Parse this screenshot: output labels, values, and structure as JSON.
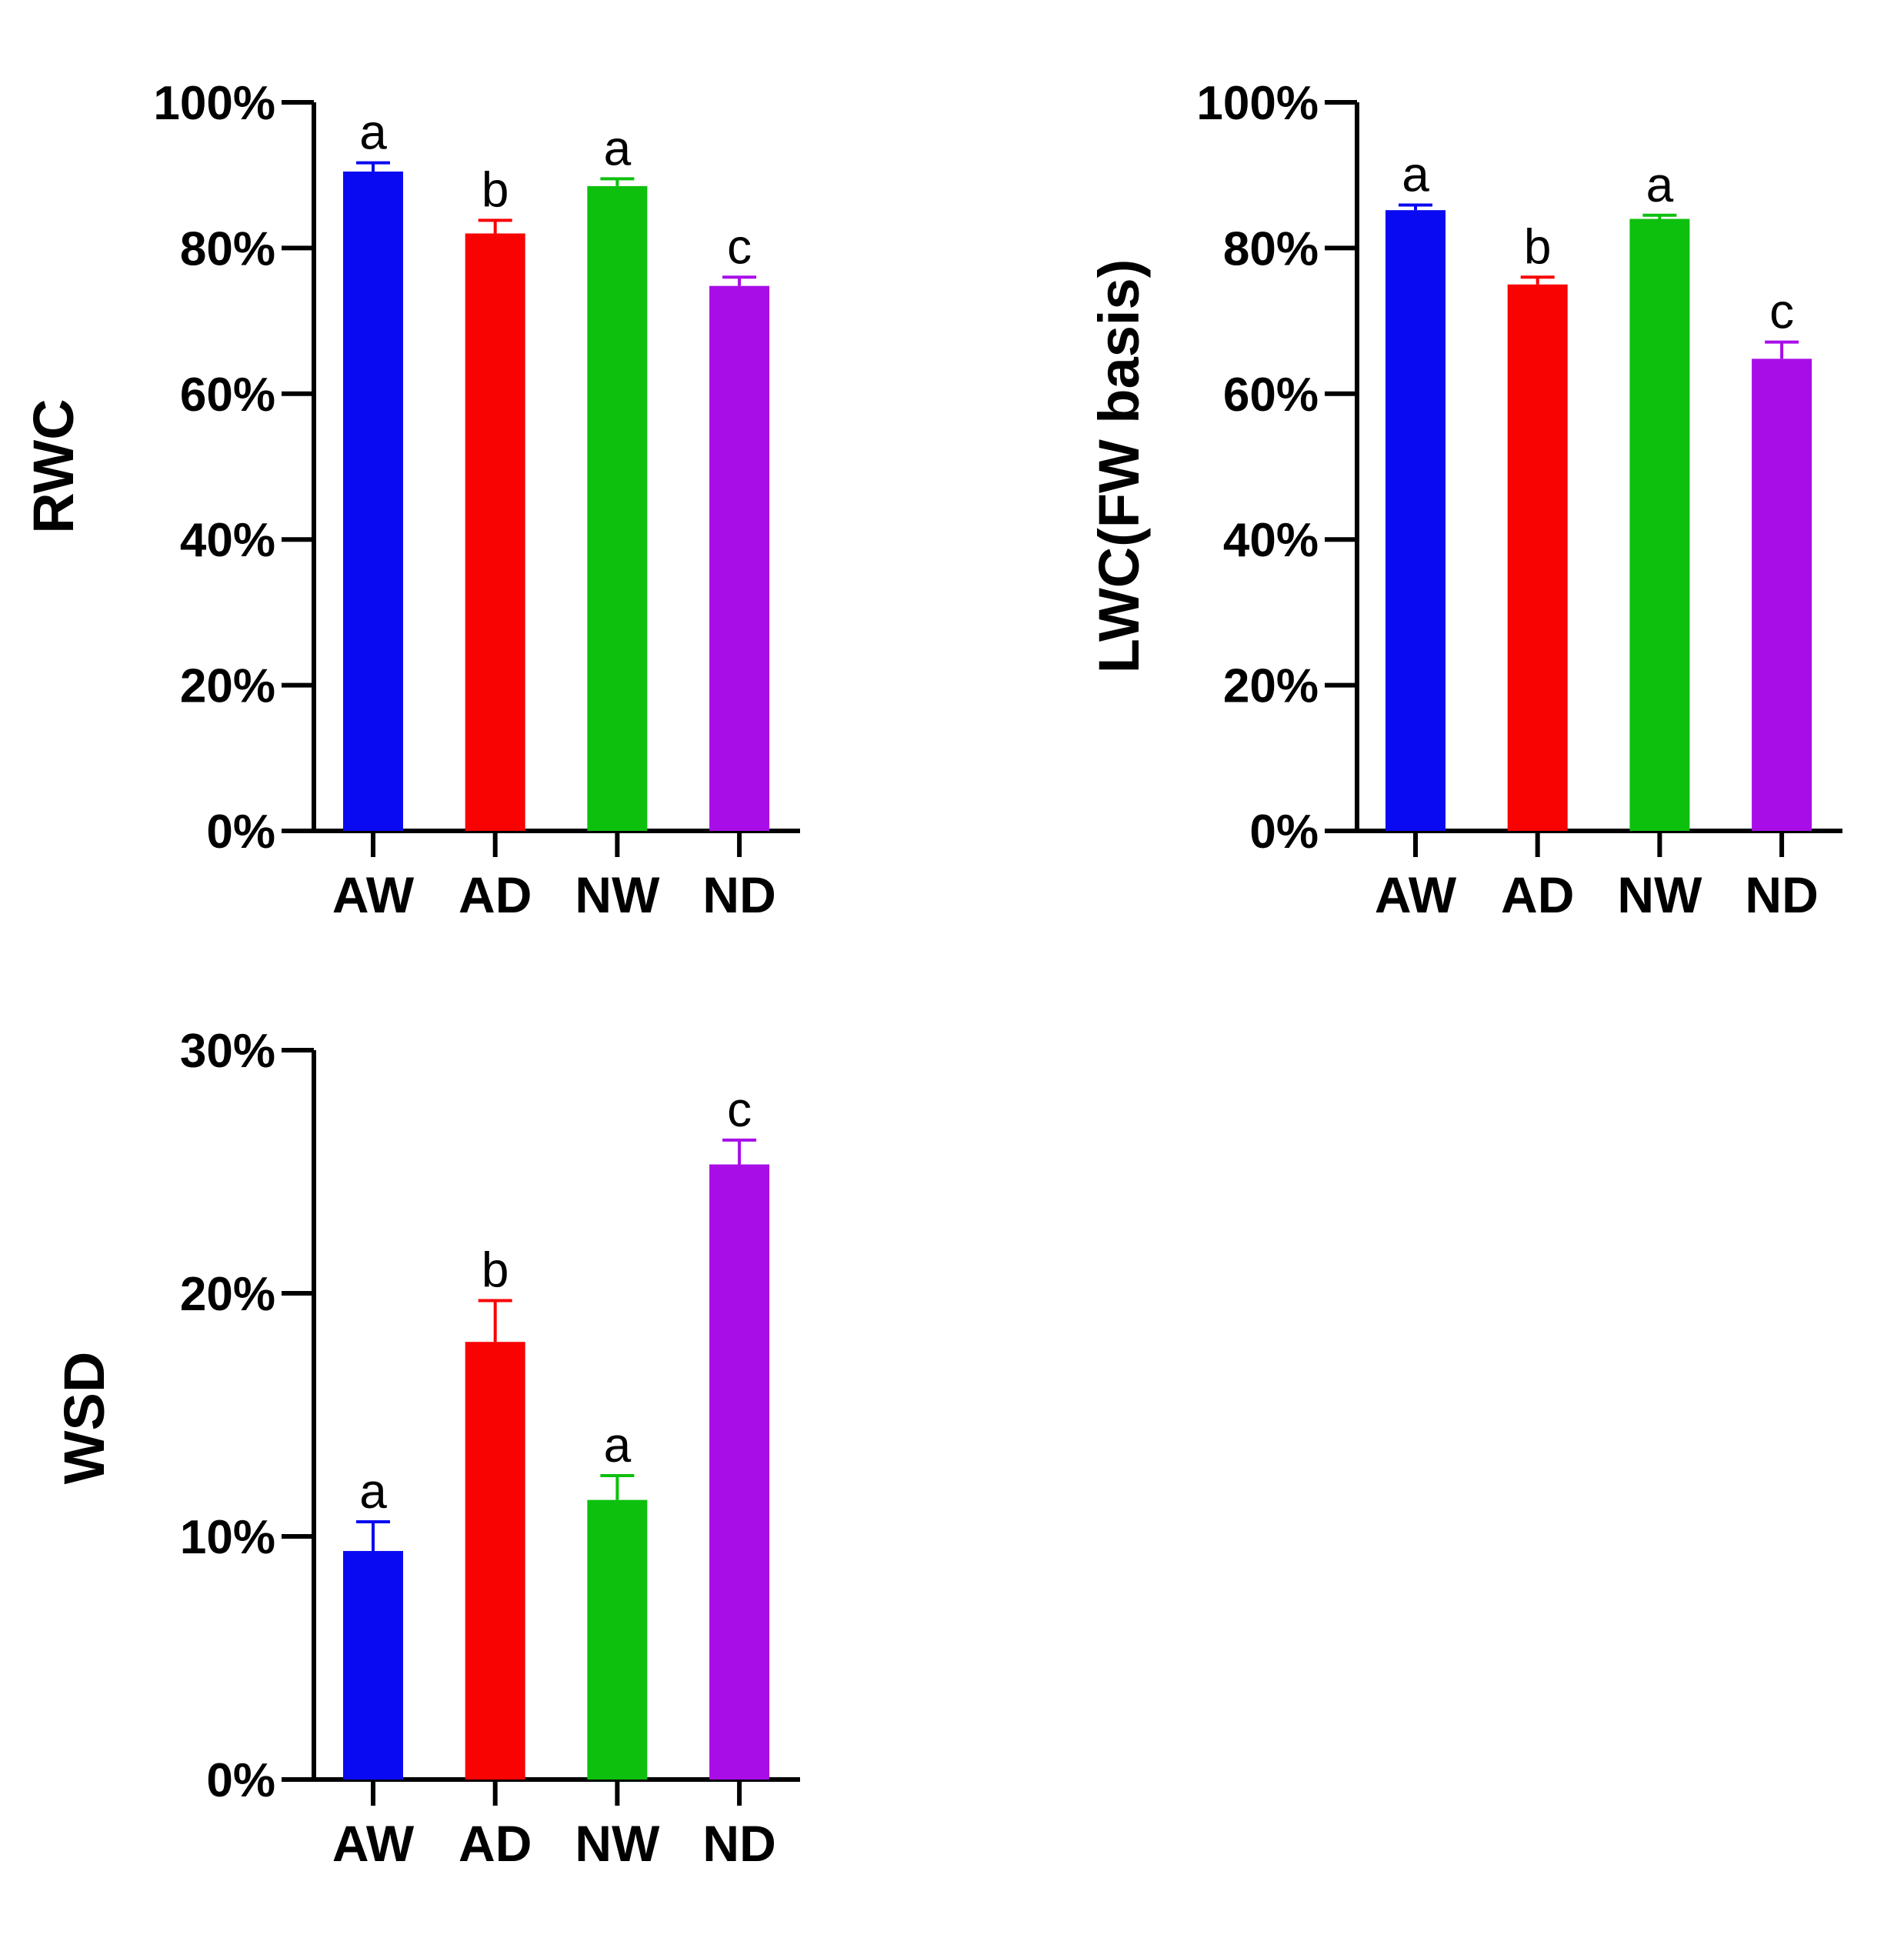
{
  "chart_data": [
    {
      "type": "bar",
      "title": "",
      "xlabel": "",
      "ylabel": "RWC",
      "categories": [
        "AW",
        "AD",
        "NW",
        "ND"
      ],
      "values": [
        90.5,
        82,
        88.5,
        74.8
      ],
      "errors": [
        1.2,
        1.8,
        1.0,
        1.2
      ],
      "significance": [
        "a",
        "b",
        "a",
        "c"
      ],
      "colors": [
        "#0A0AF2",
        "#F80202",
        "#0DC00D",
        "#A80DE8"
      ],
      "ylim": [
        0,
        100
      ],
      "yticks": [
        "0%",
        "20%",
        "40%",
        "60%",
        "80%",
        "100%"
      ],
      "grid": false
    },
    {
      "type": "bar",
      "title": "",
      "xlabel": "",
      "ylabel": "LWC(FW basis)",
      "categories": [
        "AW",
        "AD",
        "NW",
        "ND"
      ],
      "values": [
        85.2,
        75,
        84,
        64.8
      ],
      "errors": [
        0.7,
        1.0,
        0.5,
        2.3
      ],
      "significance": [
        "a",
        "b",
        "a",
        "c"
      ],
      "colors": [
        "#0A0AF2",
        "#F80202",
        "#0DC00D",
        "#A80DE8"
      ],
      "ylim": [
        0,
        100
      ],
      "yticks": [
        "0%",
        "20%",
        "40%",
        "60%",
        "80%",
        "100%"
      ],
      "grid": false
    },
    {
      "type": "bar",
      "title": "",
      "xlabel": "",
      "ylabel": "WSD",
      "categories": [
        "AW",
        "AD",
        "NW",
        "ND"
      ],
      "values": [
        9.4,
        18,
        11.5,
        25.3
      ],
      "errors": [
        1.2,
        1.7,
        1.0,
        1.0
      ],
      "significance": [
        "a",
        "b",
        "a",
        "c"
      ],
      "colors": [
        "#0A0AF2",
        "#F80202",
        "#0DC00D",
        "#A80DE8"
      ],
      "ylim": [
        0,
        30
      ],
      "yticks": [
        "0%",
        "10%",
        "20%",
        "30%"
      ],
      "grid": false
    }
  ]
}
